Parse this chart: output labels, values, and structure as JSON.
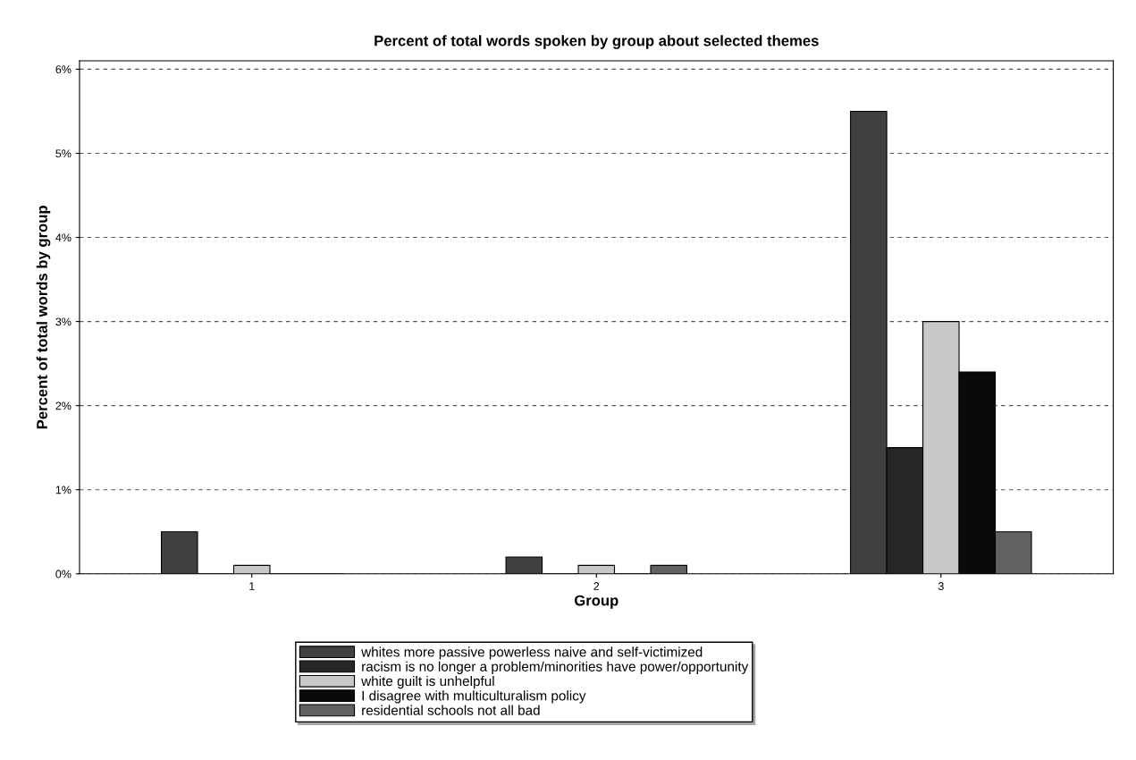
{
  "chart_data": {
    "type": "bar",
    "title": "Percent of total words spoken by group about selected themes",
    "xlabel": "Group",
    "ylabel": "Percent of total words by group",
    "categories": [
      "1",
      "2",
      "3"
    ],
    "series": [
      {
        "name": "whites more passive powerless naive and self-victimized",
        "color": "#404040",
        "values": [
          0.5,
          0.2,
          5.5
        ]
      },
      {
        "name": "racism is no longer a problem/minorities have power/opportunity",
        "color": "#262626",
        "values": [
          0,
          0,
          1.5
        ]
      },
      {
        "name": "white guilt is unhelpful",
        "color": "#c8c8c8",
        "values": [
          0.1,
          0.1,
          3.0
        ]
      },
      {
        "name": "I disagree with multiculturalism policy",
        "color": "#0a0a0a",
        "values": [
          0,
          0,
          2.4
        ]
      },
      {
        "name": "residential schools not all bad",
        "color": "#626262",
        "values": [
          0,
          0.1,
          0.5
        ]
      }
    ],
    "ylim": [
      0,
      6.1
    ],
    "yticks": [
      {
        "value": 0,
        "label": "0%"
      },
      {
        "value": 1,
        "label": "1%"
      },
      {
        "value": 2,
        "label": "2%"
      },
      {
        "value": 3,
        "label": "3%"
      },
      {
        "value": 4,
        "label": "4%"
      },
      {
        "value": 5,
        "label": "5%"
      },
      {
        "value": 6,
        "label": "6%"
      }
    ],
    "grid": "y",
    "legend": "bottom"
  }
}
